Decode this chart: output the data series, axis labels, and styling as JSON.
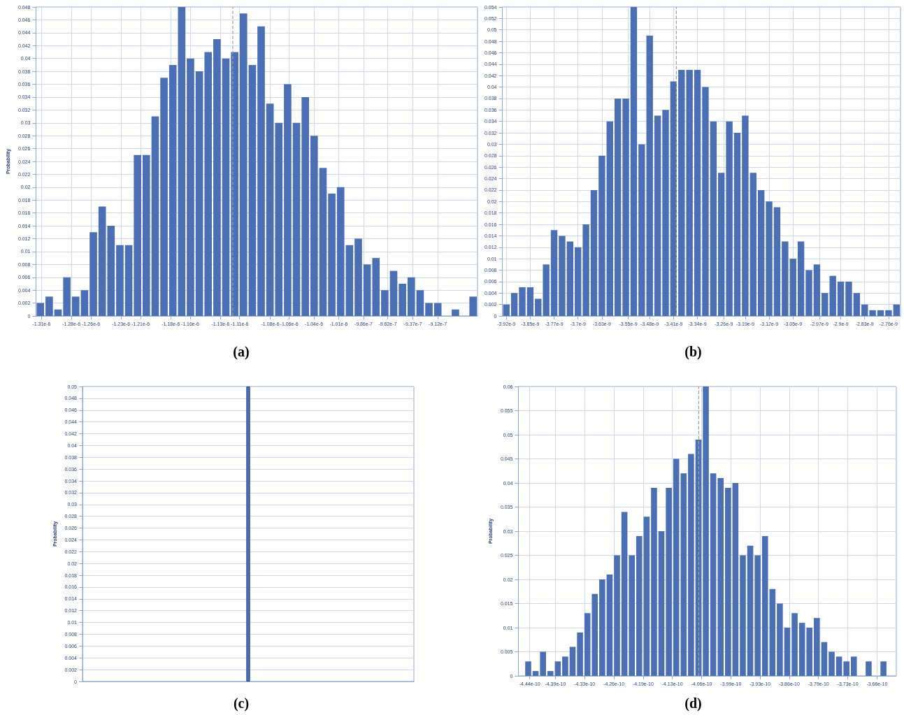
{
  "chart_data": [
    {
      "type": "histogram",
      "title": "(a)",
      "ylabel": "Probability",
      "color": "#4a6fb5",
      "grid": true,
      "bins": [
        -1.3156e-06,
        -1.30672e-06,
        -1.29784e-06,
        -1.28896e-06,
        -1.28008e-06,
        -1.2712e-06,
        -1.26232e-06,
        -1.25344e-06,
        -1.24456e-06,
        -1.23568e-06,
        -1.2268e-06,
        -1.21792e-06,
        -1.20904e-06,
        -1.20016e-06,
        -1.19128e-06,
        -1.1824e-06,
        -1.17352e-06,
        -1.16464e-06,
        -1.15576e-06,
        -1.14688e-06,
        -1.138e-06,
        -1.12912e-06,
        -1.12024e-06,
        -1.11136e-06,
        -1.10248e-06,
        -1.0936e-06,
        -1.08472e-06,
        -1.07584e-06,
        -1.06696e-06,
        -1.05808e-06,
        -1.0492e-06,
        -1.04032e-06,
        -1.03144e-06,
        -1.02256e-06,
        -1.01368e-06,
        -1.0048e-06,
        -9.9592e-07,
        -9.8704e-07,
        -9.7816e-07,
        -9.6928e-07,
        -9.604e-07,
        -9.5152e-07,
        -9.4264e-07,
        -9.3376e-07,
        -9.2488e-07,
        -9.16e-07,
        -9.0712e-07,
        -8.9824e-07,
        -8.8936e-07,
        -8.8048e-07,
        -8.716e-07
      ],
      "values": [
        0.002,
        0.003,
        0.001,
        0.006,
        0.003,
        0.004,
        0.013,
        0.017,
        0.014,
        0.011,
        0.011,
        0.025,
        0.025,
        0.031,
        0.037,
        0.039,
        0.048,
        0.04,
        0.038,
        0.041,
        0.043,
        0.04,
        0.041,
        0.047,
        0.039,
        0.045,
        0.033,
        0.03,
        0.036,
        0.03,
        0.034,
        0.028,
        0.023,
        0.019,
        0.02,
        0.011,
        0.012,
        0.008,
        0.009,
        0.004,
        0.007,
        0.005,
        0.006,
        0.004,
        0.002,
        0.002,
        0,
        0.001,
        0,
        0.003
      ],
      "xlim": [
        -1.3156e-06,
        -8.716e-07
      ],
      "xticks": [
        {
          "value": -1.31e-06,
          "label": "-1.31e-6"
        },
        {
          "value": -1.28e-06,
          "label": "-1.28e-6"
        },
        {
          "value": -1.2602e-06,
          "label": "-1.26e-6"
        },
        {
          "value": -1.23e-06,
          "label": "-1.23e-6"
        },
        {
          "value": -1.2104e-06,
          "label": "-1.21e-6"
        },
        {
          "value": -1.18e-06,
          "label": "-1.18e-6"
        },
        {
          "value": -1.1606e-06,
          "label": "-1.16e-6"
        },
        {
          "value": -1.13e-06,
          "label": "-1.13e-6"
        },
        {
          "value": -1.1108e-06,
          "label": "-1.11e-6"
        },
        {
          "value": -1.08e-06,
          "label": "-1.08e-6"
        },
        {
          "value": -1.061e-06,
          "label": "-1.06e-6"
        },
        {
          "value": -1.0361e-06,
          "label": "-1.04e-6"
        },
        {
          "value": -1.0112e-06,
          "label": "-1.01e-6"
        },
        {
          "value": -9.863e-07,
          "label": "-9.86e-7"
        },
        {
          "value": -9.62e-07,
          "label": "-9.62e-7"
        },
        {
          "value": -9.365e-07,
          "label": "-9.37e-7"
        },
        {
          "value": -9.116e-07,
          "label": "-9.12e-7"
        }
      ],
      "ylim": [
        0,
        0.048
      ],
      "yticks": [
        0,
        0.002,
        0.004,
        0.006,
        0.008,
        0.01,
        0.012,
        0.014,
        0.016,
        0.018,
        0.02,
        0.022,
        0.024,
        0.026,
        0.028,
        0.03,
        0.032,
        0.034,
        0.036,
        0.038,
        0.04,
        0.042,
        0.044,
        0.046,
        0.048
      ],
      "ref_lines": [
        {
          "axis": "x",
          "value": -1.1177e-06,
          "color": "#a0a0a0",
          "line_style": "dashed"
        }
      ]
    },
    {
      "type": "histogram",
      "title": "(b)",
      "color": "#4a6fb5",
      "grid": true,
      "bins": [
        -3.9321e-09,
        -3.90793e-09,
        -3.88376e-09,
        -3.85959e-09,
        -3.83542e-09,
        -3.81125e-09,
        -3.78708e-09,
        -3.76291e-09,
        -3.73874e-09,
        -3.71457e-09,
        -3.6904e-09,
        -3.66623e-09,
        -3.64206e-09,
        -3.61789e-09,
        -3.59372e-09,
        -3.56955e-09,
        -3.54538e-09,
        -3.52121e-09,
        -3.49704e-09,
        -3.47287e-09,
        -3.4487e-09,
        -3.42453e-09,
        -3.40036e-09,
        -3.37619e-09,
        -3.35202e-09,
        -3.32785e-09,
        -3.30368e-09,
        -3.27951e-09,
        -3.25534e-09,
        -3.23117e-09,
        -3.207e-09,
        -3.18283e-09,
        -3.15866e-09,
        -3.13449e-09,
        -3.11032e-09,
        -3.08615e-09,
        -3.06198e-09,
        -3.03781e-09,
        -3.01364e-09,
        -2.98947e-09,
        -2.9653e-09,
        -2.94113e-09,
        -2.91696e-09,
        -2.89279e-09,
        -2.86862e-09,
        -2.84445e-09,
        -2.82028e-09,
        -2.79611e-09,
        -2.77194e-09,
        -2.74777e-09,
        -2.7236e-09
      ],
      "values": [
        0.002,
        0.004,
        0.005,
        0.005,
        0.003,
        0.009,
        0.015,
        0.014,
        0.013,
        0.012,
        0.016,
        0.022,
        0.028,
        0.034,
        0.038,
        0.038,
        0.054,
        0.03,
        0.049,
        0.035,
        0.036,
        0.041,
        0.043,
        0.043,
        0.043,
        0.04,
        0.034,
        0.025,
        0.034,
        0.032,
        0.035,
        0.025,
        0.022,
        0.02,
        0.019,
        0.013,
        0.01,
        0.013,
        0.008,
        0.009,
        0.004,
        0.007,
        0.006,
        0.006,
        0.004,
        0.002,
        0.001,
        0.001,
        0.001,
        0.002
      ],
      "xlim": [
        -3.9321e-09,
        -2.7236e-09
      ],
      "xticks": [
        {
          "value": -3.92e-09,
          "label": "-3.92e-9"
        },
        {
          "value": -3.8475e-09,
          "label": "-3.85e-9"
        },
        {
          "value": -3.775e-09,
          "label": "-3.77e-9"
        },
        {
          "value": -3.7025e-09,
          "label": "-3.7e-9"
        },
        {
          "value": -3.63e-09,
          "label": "-3.63e-9"
        },
        {
          "value": -3.55e-09,
          "label": "-3.55e-9"
        },
        {
          "value": -3.485e-09,
          "label": "-3.48e-9"
        },
        {
          "value": -3.4125e-09,
          "label": "-3.41e-9"
        },
        {
          "value": -3.34e-09,
          "label": "-3.34e-9"
        },
        {
          "value": -3.26e-09,
          "label": "-3.26e-9"
        },
        {
          "value": -3.195e-09,
          "label": "-3.19e-9"
        },
        {
          "value": -3.1225e-09,
          "label": "-3.12e-9"
        },
        {
          "value": -3.05e-09,
          "label": "-3.05e-9"
        },
        {
          "value": -2.97e-09,
          "label": "-2.97e-9"
        },
        {
          "value": -2.905e-09,
          "label": "-2.9e-9"
        },
        {
          "value": -2.8325e-09,
          "label": "-2.83e-9"
        },
        {
          "value": -2.76e-09,
          "label": "-2.76e-9"
        }
      ],
      "ylim": [
        0,
        0.054
      ],
      "yticks": [
        0,
        0.002,
        0.004,
        0.006,
        0.008,
        0.01,
        0.012,
        0.014,
        0.016,
        0.018,
        0.02,
        0.022,
        0.024,
        0.026,
        0.028,
        0.03,
        0.032,
        0.034,
        0.036,
        0.038,
        0.04,
        0.042,
        0.044,
        0.046,
        0.048,
        0.05,
        0.052,
        0.054
      ],
      "ref_lines": [
        {
          "axis": "x",
          "value": -3.404e-09,
          "color": "#a0a0a0",
          "line_style": "dashed"
        }
      ]
    },
    {
      "type": "bar",
      "title": "(c)",
      "ylabel": "Probability",
      "color": "#4a6fb5",
      "grid": "y",
      "tick_labels": "y",
      "categories": [
        null,
        null,
        null,
        null,
        null,
        null,
        null,
        null,
        null,
        null,
        null,
        null,
        null,
        null,
        null,
        null,
        null,
        null,
        null,
        null,
        null,
        null,
        null,
        null,
        null,
        null,
        null,
        null,
        null,
        null,
        null,
        null,
        null,
        null,
        null,
        null,
        null,
        null,
        null,
        null,
        null,
        null,
        null,
        null,
        null,
        null,
        null,
        null,
        null,
        null,
        null,
        null,
        null,
        null,
        null,
        null,
        null,
        null,
        null,
        null,
        null,
        null,
        null,
        null,
        null,
        null,
        null,
        null,
        null,
        null,
        null,
        null,
        null,
        null,
        null,
        null,
        null,
        null,
        null
      ],
      "values": [
        null,
        null,
        null,
        null,
        null,
        null,
        null,
        null,
        null,
        null,
        null,
        null,
        null,
        null,
        null,
        null,
        null,
        null,
        null,
        null,
        null,
        null,
        null,
        null,
        null,
        null,
        null,
        null,
        null,
        null,
        null,
        null,
        null,
        null,
        null,
        null,
        null,
        null,
        null,
        0.05,
        null,
        null,
        null,
        null,
        null,
        null,
        null,
        null,
        null,
        null,
        null,
        null,
        null,
        null,
        null,
        null,
        null,
        null,
        null,
        null,
        null,
        null,
        null,
        null,
        null,
        null,
        null,
        null,
        null,
        null,
        null,
        null,
        null,
        null,
        null,
        null,
        null,
        null,
        null
      ],
      "ylim": [
        0,
        0.05
      ],
      "yticks": [
        0,
        0.002,
        0.004,
        0.006,
        0.008,
        0.01,
        0.012,
        0.014,
        0.016,
        0.018,
        0.02,
        0.022,
        0.024,
        0.026,
        0.028,
        0.03,
        0.032,
        0.034,
        0.036,
        0.038,
        0.04,
        0.042,
        0.044,
        0.046,
        0.048,
        0.05
      ]
    },
    {
      "type": "histogram",
      "title": "(d)",
      "ylabel": "Probability",
      "color": "#4a6fb5",
      "grid": true,
      "bins": [
        -4.467e-10,
        -4.45014e-10,
        -4.43328e-10,
        -4.41642e-10,
        -4.39956e-10,
        -4.3827e-10,
        -4.36584e-10,
        -4.34898e-10,
        -4.33212e-10,
        -4.31526e-10,
        -4.2984e-10,
        -4.28154e-10,
        -4.26468e-10,
        -4.24782e-10,
        -4.23096e-10,
        -4.2141e-10,
        -4.19724e-10,
        -4.18038e-10,
        -4.16352e-10,
        -4.14666e-10,
        -4.1298e-10,
        -4.11294e-10,
        -4.09608e-10,
        -4.07922e-10,
        -4.06236e-10,
        -4.0455e-10,
        -4.02864e-10,
        -4.01178e-10,
        -3.99492e-10,
        -3.97806e-10,
        -3.9612e-10,
        -3.94434e-10,
        -3.92748e-10,
        -3.91062e-10,
        -3.89376e-10,
        -3.8769e-10,
        -3.86004e-10,
        -3.84318e-10,
        -3.82632e-10,
        -3.80946e-10,
        -3.7926e-10,
        -3.77574e-10,
        -3.75888e-10,
        -3.74202e-10,
        -3.72516e-10,
        -3.7083e-10,
        -3.69144e-10,
        -3.67458e-10,
        -3.65772e-10,
        -3.64086e-10
      ],
      "values": [
        0.003,
        0.001,
        0.005,
        0.001,
        0.003,
        0.004,
        0.006,
        0.009,
        0.013,
        0.017,
        0.02,
        0.021,
        0.025,
        0.034,
        0.025,
        0.029,
        0.033,
        0.039,
        0.03,
        0.039,
        0.045,
        0.042,
        0.046,
        0.049,
        0.06,
        0.042,
        0.041,
        0.039,
        0.04,
        0.025,
        0.027,
        0.025,
        0.029,
        0.018,
        0.015,
        0.01,
        0.013,
        0.011,
        0.01,
        0.012,
        0.007,
        0.005,
        0.004,
        0.003,
        0.004,
        0,
        0.003,
        0,
        0.003
      ],
      "xlim": [
        -4.481e-10,
        -3.62e-10
      ],
      "xticks": [
        {
          "value": -4.455e-10,
          "label": "-4.44e-10"
        },
        {
          "value": -4.3966e-10,
          "label": "-4.39e-10"
        },
        {
          "value": -4.33e-10,
          "label": "-4.33e-10"
        },
        {
          "value": -4.2634e-10,
          "label": "-4.26e-10"
        },
        {
          "value": -4.1968e-10,
          "label": "-4.19e-10"
        },
        {
          "value": -4.1302e-10,
          "label": "-4.13e-10"
        },
        {
          "value": -4.0636e-10,
          "label": "-4.06e-10"
        },
        {
          "value": -3.997e-10,
          "label": "-3.99e-10"
        },
        {
          "value": -3.9304e-10,
          "label": "-3.93e-10"
        },
        {
          "value": -3.8638e-10,
          "label": "-3.86e-10"
        },
        {
          "value": -3.7972e-10,
          "label": "-3.79e-10"
        },
        {
          "value": -3.7306e-10,
          "label": "-3.73e-10"
        },
        {
          "value": -3.664e-10,
          "label": "-3.66e-10"
        }
      ],
      "ylim": [
        0,
        0.06
      ],
      "yticks": [
        0,
        0.005,
        0.01,
        0.015,
        0.02,
        0.025,
        0.03,
        0.035,
        0.04,
        0.045,
        0.05,
        0.055,
        0.06
      ],
      "ref_lines": [
        {
          "axis": "x",
          "value": -4.07e-10,
          "color": "#a0a0a0",
          "line_style": "dashed"
        }
      ]
    }
  ]
}
